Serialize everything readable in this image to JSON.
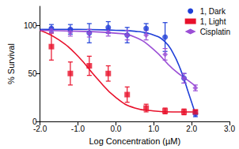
{
  "chart_data": {
    "type": "scatter",
    "x_label": "Log Concentration (µM)",
    "y_label": "% Survival",
    "xlim": [
      -2,
      3
    ],
    "xticks": [
      {
        "value": -2,
        "label": "-2.0"
      },
      {
        "value": -1,
        "label": "-1.0"
      },
      {
        "value": 0,
        "label": "0.0"
      },
      {
        "value": 1,
        "label": "1.0"
      },
      {
        "value": 2,
        "label": "2.0"
      },
      {
        "value": 3,
        "label": "3.0"
      }
    ],
    "ylim": [
      0,
      120
    ],
    "yticks": [
      0,
      50,
      100
    ],
    "grid": false,
    "legend": "top-right",
    "series": [
      {
        "name": "1, Dark",
        "color": "#1f3fd8",
        "marker": "circle",
        "x": [
          -1.7,
          -1.2,
          -0.7,
          -0.2,
          0.3,
          0.8,
          1.3,
          1.8,
          2.1
        ],
        "values": [
          97,
          96,
          92,
          98,
          90,
          97,
          88,
          45,
          8
        ],
        "errors": [
          4,
          5,
          10,
          6,
          8,
          5,
          15,
          5,
          3
        ],
        "fit": {
          "x": [
            -2,
            -1,
            0,
            0.5,
            1,
            1.3,
            1.5,
            1.7,
            1.9,
            2.1
          ],
          "values": [
            96,
            96,
            95,
            94,
            90,
            83,
            72,
            55,
            32,
            8
          ]
        }
      },
      {
        "name": "1, Light",
        "color": "#e8102a",
        "marker": "square",
        "x": [
          -1.7,
          -1.2,
          -0.7,
          -0.2,
          0.3,
          0.8,
          1.3,
          1.8,
          2.1
        ],
        "values": [
          78,
          50,
          58,
          50,
          28,
          14,
          11,
          10,
          10
        ],
        "errors": [
          14,
          12,
          10,
          8,
          8,
          4,
          3,
          3,
          2
        ],
        "fit": {
          "x": [
            -2,
            -1.5,
            -1,
            -0.5,
            0,
            0.5,
            1,
            1.5,
            2,
            2.1
          ],
          "values": [
            95,
            85,
            68,
            45,
            25,
            14,
            11,
            10,
            10,
            10
          ]
        }
      },
      {
        "name": "Cisplatin",
        "color": "#9b4fd6",
        "marker": "diamond",
        "x": [
          -1.7,
          -1.2,
          -0.7,
          -0.2,
          0.3,
          0.8,
          1.3,
          1.8,
          2.1
        ],
        "values": [
          95,
          93,
          92,
          93,
          90,
          90,
          70,
          45,
          35
        ],
        "errors": [
          3,
          4,
          4,
          4,
          5,
          5,
          6,
          5,
          3
        ],
        "fit": {
          "x": [
            -2,
            -1,
            0,
            0.5,
            1,
            1.5,
            2,
            2.1
          ],
          "values": [
            95,
            94,
            92,
            88,
            75,
            55,
            40,
            37
          ]
        }
      }
    ]
  }
}
